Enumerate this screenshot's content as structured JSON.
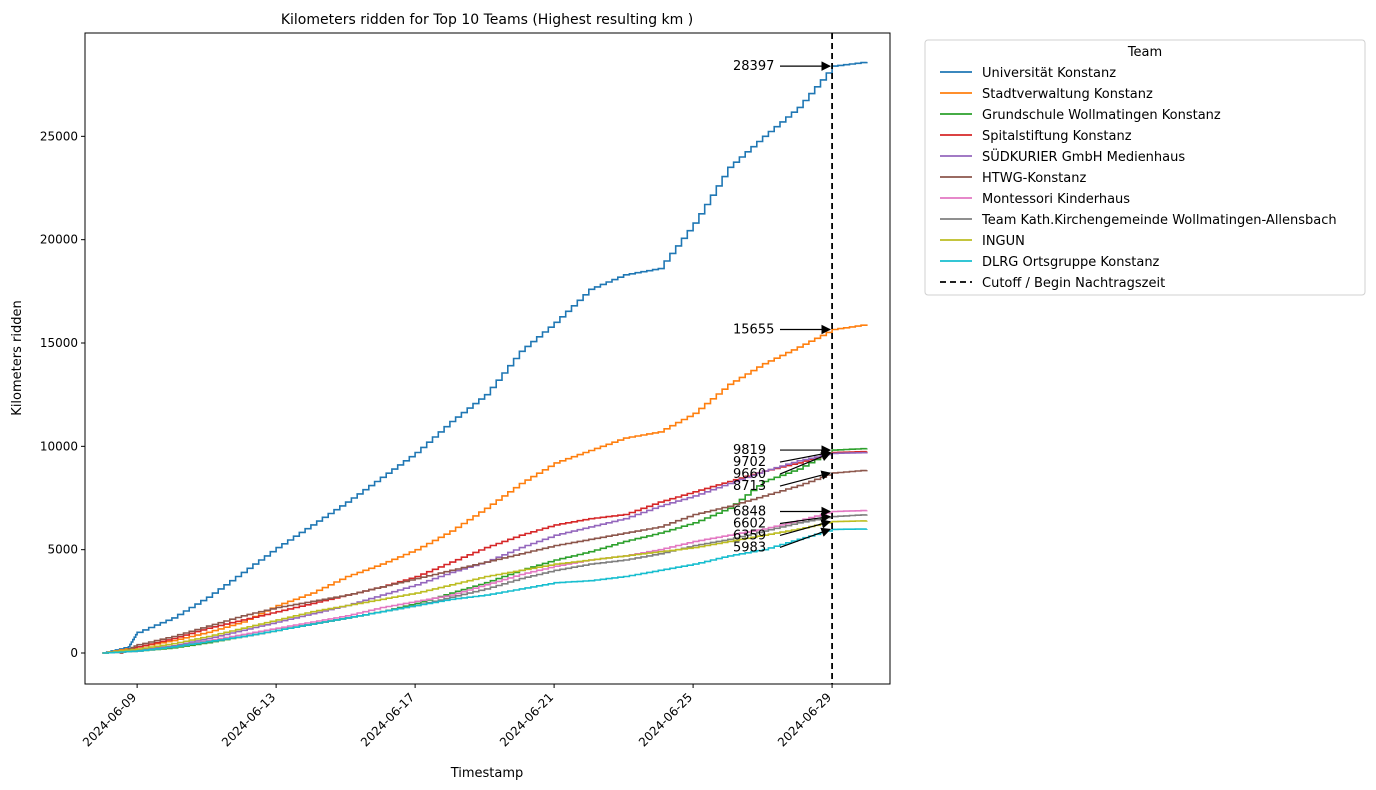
{
  "chart_data": {
    "type": "line",
    "title": "Kilometers ridden for Top 10 Teams (Highest resulting km )",
    "xlabel": "Timestamp",
    "ylabel": "Kilometers ridden",
    "x_is_date": true,
    "xlim": [
      "2024-06-07 12:00",
      "2024-06-30 16:00"
    ],
    "ylim": [
      -1500,
      30000
    ],
    "xticks": [
      "2024-06-09",
      "2024-06-13",
      "2024-06-17",
      "2024-06-21",
      "2024-06-25",
      "2024-06-29"
    ],
    "yticks": [
      0,
      5000,
      10000,
      15000,
      20000,
      25000
    ],
    "grid": false,
    "legend": {
      "title": "Team",
      "position": "outside-top-right"
    },
    "cutoff": {
      "x": "2024-06-29 00:00",
      "label": "Cutoff / Begin Nachtragszeit",
      "color": "#000000",
      "style": "dashed"
    },
    "series": [
      {
        "name": "Universität Konstanz",
        "color": "#1f77b4",
        "annotation": "28397",
        "points": [
          [
            "2024-06-08 00:00",
            0
          ],
          [
            "2024-06-08 18:00",
            300
          ],
          [
            "2024-06-09 00:00",
            1000
          ],
          [
            "2024-06-10 00:00",
            1700
          ],
          [
            "2024-06-11 00:00",
            2700
          ],
          [
            "2024-06-12 00:00",
            3900
          ],
          [
            "2024-06-13 00:00",
            5100
          ],
          [
            "2024-06-14 00:00",
            6200
          ],
          [
            "2024-06-15 00:00",
            7300
          ],
          [
            "2024-06-16 00:00",
            8500
          ],
          [
            "2024-06-17 00:00",
            9700
          ],
          [
            "2024-06-18 00:00",
            11200
          ],
          [
            "2024-06-19 00:00",
            12500
          ],
          [
            "2024-06-20 00:00",
            14600
          ],
          [
            "2024-06-21 00:00",
            16000
          ],
          [
            "2024-06-22 00:00",
            17600
          ],
          [
            "2024-06-23 00:00",
            18300
          ],
          [
            "2024-06-24 00:00",
            18600
          ],
          [
            "2024-06-25 00:00",
            20800
          ],
          [
            "2024-06-26 00:00",
            23500
          ],
          [
            "2024-06-27 00:00",
            25000
          ],
          [
            "2024-06-28 00:00",
            26400
          ],
          [
            "2024-06-29 00:00",
            28397
          ],
          [
            "2024-06-30 00:00",
            28600
          ]
        ]
      },
      {
        "name": "Stadtverwaltung Konstanz",
        "color": "#ff7f0e",
        "annotation": "15655",
        "points": [
          [
            "2024-06-08 00:00",
            0
          ],
          [
            "2024-06-09 00:00",
            300
          ],
          [
            "2024-06-10 00:00",
            600
          ],
          [
            "2024-06-11 00:00",
            1000
          ],
          [
            "2024-06-12 00:00",
            1500
          ],
          [
            "2024-06-13 00:00",
            2300
          ],
          [
            "2024-06-14 00:00",
            2900
          ],
          [
            "2024-06-15 00:00",
            3700
          ],
          [
            "2024-06-16 00:00",
            4300
          ],
          [
            "2024-06-17 00:00",
            5000
          ],
          [
            "2024-06-18 00:00",
            5900
          ],
          [
            "2024-06-19 00:00",
            7000
          ],
          [
            "2024-06-20 00:00",
            8200
          ],
          [
            "2024-06-21 00:00",
            9200
          ],
          [
            "2024-06-22 00:00",
            9800
          ],
          [
            "2024-06-23 00:00",
            10400
          ],
          [
            "2024-06-24 00:00",
            10700
          ],
          [
            "2024-06-25 00:00",
            11600
          ],
          [
            "2024-06-26 00:00",
            13000
          ],
          [
            "2024-06-27 00:00",
            14000
          ],
          [
            "2024-06-28 00:00",
            14800
          ],
          [
            "2024-06-29 00:00",
            15655
          ],
          [
            "2024-06-30 00:00",
            15900
          ]
        ]
      },
      {
        "name": "Grundschule Wollmatingen Konstanz",
        "color": "#2ca02c",
        "annotation": "9819",
        "points": [
          [
            "2024-06-08 00:00",
            0
          ],
          [
            "2024-06-09 00:00",
            100
          ],
          [
            "2024-06-10 00:00",
            250
          ],
          [
            "2024-06-11 00:00",
            500
          ],
          [
            "2024-06-12 00:00",
            800
          ],
          [
            "2024-06-13 00:00",
            1100
          ],
          [
            "2024-06-14 00:00",
            1400
          ],
          [
            "2024-06-15 00:00",
            1700
          ],
          [
            "2024-06-16 00:00",
            2000
          ],
          [
            "2024-06-17 00:00",
            2400
          ],
          [
            "2024-06-18 00:00",
            2900
          ],
          [
            "2024-06-19 00:00",
            3400
          ],
          [
            "2024-06-20 00:00",
            4000
          ],
          [
            "2024-06-21 00:00",
            4500
          ],
          [
            "2024-06-22 00:00",
            4900
          ],
          [
            "2024-06-23 00:00",
            5400
          ],
          [
            "2024-06-24 00:00",
            5800
          ],
          [
            "2024-06-25 00:00",
            6300
          ],
          [
            "2024-06-26 00:00",
            7000
          ],
          [
            "2024-06-27 00:00",
            8300
          ],
          [
            "2024-06-28 00:00",
            8900
          ],
          [
            "2024-06-29 00:00",
            9819
          ],
          [
            "2024-06-30 00:00",
            9900
          ]
        ]
      },
      {
        "name": "Spitalstiftung Konstanz",
        "color": "#d62728",
        "annotation": "9702",
        "points": [
          [
            "2024-06-08 12:00",
            0
          ],
          [
            "2024-06-09 00:00",
            300
          ],
          [
            "2024-06-10 00:00",
            700
          ],
          [
            "2024-06-11 00:00",
            1200
          ],
          [
            "2024-06-12 00:00",
            1600
          ],
          [
            "2024-06-13 00:00",
            2000
          ],
          [
            "2024-06-14 00:00",
            2400
          ],
          [
            "2024-06-15 00:00",
            2800
          ],
          [
            "2024-06-16 00:00",
            3200
          ],
          [
            "2024-06-17 00:00",
            3700
          ],
          [
            "2024-06-18 00:00",
            4400
          ],
          [
            "2024-06-19 00:00",
            5100
          ],
          [
            "2024-06-20 00:00",
            5700
          ],
          [
            "2024-06-21 00:00",
            6200
          ],
          [
            "2024-06-22 00:00",
            6500
          ],
          [
            "2024-06-23 00:00",
            6700
          ],
          [
            "2024-06-24 00:00",
            7300
          ],
          [
            "2024-06-25 00:00",
            7800
          ],
          [
            "2024-06-26 00:00",
            8300
          ],
          [
            "2024-06-27 00:00",
            8800
          ],
          [
            "2024-06-28 00:00",
            9200
          ],
          [
            "2024-06-29 00:00",
            9702
          ],
          [
            "2024-06-30 00:00",
            9750
          ]
        ]
      },
      {
        "name": "SÜDKURIER GmbH Medienhaus",
        "color": "#9467bd",
        "annotation": "9660",
        "points": [
          [
            "2024-06-08 00:00",
            0
          ],
          [
            "2024-06-09 00:00",
            150
          ],
          [
            "2024-06-10 00:00",
            350
          ],
          [
            "2024-06-11 00:00",
            700
          ],
          [
            "2024-06-12 00:00",
            1100
          ],
          [
            "2024-06-13 00:00",
            1500
          ],
          [
            "2024-06-14 00:00",
            1900
          ],
          [
            "2024-06-15 00:00",
            2300
          ],
          [
            "2024-06-16 00:00",
            2800
          ],
          [
            "2024-06-17 00:00",
            3300
          ],
          [
            "2024-06-18 00:00",
            3900
          ],
          [
            "2024-06-19 00:00",
            4400
          ],
          [
            "2024-06-20 00:00",
            5100
          ],
          [
            "2024-06-21 00:00",
            5700
          ],
          [
            "2024-06-22 00:00",
            6100
          ],
          [
            "2024-06-23 00:00",
            6500
          ],
          [
            "2024-06-24 00:00",
            7100
          ],
          [
            "2024-06-25 00:00",
            7600
          ],
          [
            "2024-06-26 00:00",
            8200
          ],
          [
            "2024-06-27 00:00",
            8800
          ],
          [
            "2024-06-28 00:00",
            9300
          ],
          [
            "2024-06-29 00:00",
            9660
          ],
          [
            "2024-06-30 00:00",
            9700
          ]
        ]
      },
      {
        "name": "HTWG-Konstanz",
        "color": "#8c564b",
        "annotation": "8713",
        "points": [
          [
            "2024-06-08 12:00",
            0
          ],
          [
            "2024-06-09 00:00",
            400
          ],
          [
            "2024-06-10 00:00",
            800
          ],
          [
            "2024-06-11 00:00",
            1300
          ],
          [
            "2024-06-12 00:00",
            1800
          ],
          [
            "2024-06-13 00:00",
            2200
          ],
          [
            "2024-06-14 00:00",
            2500
          ],
          [
            "2024-06-15 00:00",
            2800
          ],
          [
            "2024-06-16 00:00",
            3200
          ],
          [
            "2024-06-17 00:00",
            3600
          ],
          [
            "2024-06-18 00:00",
            4000
          ],
          [
            "2024-06-19 00:00",
            4400
          ],
          [
            "2024-06-20 00:00",
            4800
          ],
          [
            "2024-06-21 00:00",
            5200
          ],
          [
            "2024-06-22 00:00",
            5500
          ],
          [
            "2024-06-23 00:00",
            5800
          ],
          [
            "2024-06-24 00:00",
            6100
          ],
          [
            "2024-06-25 00:00",
            6700
          ],
          [
            "2024-06-26 00:00",
            7100
          ],
          [
            "2024-06-27 00:00",
            7600
          ],
          [
            "2024-06-28 00:00",
            8100
          ],
          [
            "2024-06-29 00:00",
            8713
          ],
          [
            "2024-06-30 00:00",
            8850
          ]
        ]
      },
      {
        "name": "Montessori Kinderhaus",
        "color": "#e377c2",
        "annotation": "6848",
        "points": [
          [
            "2024-06-08 00:00",
            0
          ],
          [
            "2024-06-09 00:00",
            100
          ],
          [
            "2024-06-10 00:00",
            300
          ],
          [
            "2024-06-11 00:00",
            600
          ],
          [
            "2024-06-12 00:00",
            900
          ],
          [
            "2024-06-13 00:00",
            1200
          ],
          [
            "2024-06-14 00:00",
            1500
          ],
          [
            "2024-06-15 00:00",
            1800
          ],
          [
            "2024-06-16 00:00",
            2200
          ],
          [
            "2024-06-17 00:00",
            2500
          ],
          [
            "2024-06-18 00:00",
            2800
          ],
          [
            "2024-06-19 00:00",
            3300
          ],
          [
            "2024-06-20 00:00",
            3800
          ],
          [
            "2024-06-21 00:00",
            4200
          ],
          [
            "2024-06-22 00:00",
            4500
          ],
          [
            "2024-06-23 00:00",
            4700
          ],
          [
            "2024-06-24 00:00",
            5000
          ],
          [
            "2024-06-25 00:00",
            5400
          ],
          [
            "2024-06-26 00:00",
            5700
          ],
          [
            "2024-06-27 00:00",
            6000
          ],
          [
            "2024-06-28 00:00",
            6400
          ],
          [
            "2024-06-29 00:00",
            6848
          ],
          [
            "2024-06-30 00:00",
            6900
          ]
        ]
      },
      {
        "name": "Team Kath.Kirchengemeinde Wollmatingen-Allensbach",
        "color": "#7f7f7f",
        "annotation": "6602",
        "points": [
          [
            "2024-06-08 00:00",
            0
          ],
          [
            "2024-06-09 00:00",
            100
          ],
          [
            "2024-06-10 00:00",
            300
          ],
          [
            "2024-06-11 00:00",
            550
          ],
          [
            "2024-06-12 00:00",
            800
          ],
          [
            "2024-06-13 00:00",
            1100
          ],
          [
            "2024-06-14 00:00",
            1400
          ],
          [
            "2024-06-15 00:00",
            1700
          ],
          [
            "2024-06-16 00:00",
            2000
          ],
          [
            "2024-06-17 00:00",
            2300
          ],
          [
            "2024-06-18 00:00",
            2700
          ],
          [
            "2024-06-19 00:00",
            3100
          ],
          [
            "2024-06-20 00:00",
            3600
          ],
          [
            "2024-06-21 00:00",
            4000
          ],
          [
            "2024-06-22 00:00",
            4300
          ],
          [
            "2024-06-23 00:00",
            4500
          ],
          [
            "2024-06-24 00:00",
            4800
          ],
          [
            "2024-06-25 00:00",
            5200
          ],
          [
            "2024-06-26 00:00",
            5500
          ],
          [
            "2024-06-27 00:00",
            5900
          ],
          [
            "2024-06-28 00:00",
            6300
          ],
          [
            "2024-06-29 00:00",
            6602
          ],
          [
            "2024-06-30 00:00",
            6700
          ]
        ]
      },
      {
        "name": "INGUN",
        "color": "#bcbd22",
        "annotation": "6359",
        "points": [
          [
            "2024-06-08 00:00",
            0
          ],
          [
            "2024-06-09 00:00",
            200
          ],
          [
            "2024-06-10 00:00",
            450
          ],
          [
            "2024-06-11 00:00",
            800
          ],
          [
            "2024-06-12 00:00",
            1200
          ],
          [
            "2024-06-13 00:00",
            1600
          ],
          [
            "2024-06-14 00:00",
            2000
          ],
          [
            "2024-06-15 00:00",
            2300
          ],
          [
            "2024-06-16 00:00",
            2600
          ],
          [
            "2024-06-17 00:00",
            2900
          ],
          [
            "2024-06-18 00:00",
            3300
          ],
          [
            "2024-06-19 00:00",
            3700
          ],
          [
            "2024-06-20 00:00",
            4000
          ],
          [
            "2024-06-21 00:00",
            4300
          ],
          [
            "2024-06-22 00:00",
            4500
          ],
          [
            "2024-06-23 00:00",
            4700
          ],
          [
            "2024-06-24 00:00",
            4900
          ],
          [
            "2024-06-25 00:00",
            5100
          ],
          [
            "2024-06-26 00:00",
            5400
          ],
          [
            "2024-06-27 00:00",
            5700
          ],
          [
            "2024-06-28 00:00",
            6000
          ],
          [
            "2024-06-29 00:00",
            6359
          ],
          [
            "2024-06-30 00:00",
            6400
          ]
        ]
      },
      {
        "name": "DLRG Ortsgruppe Konstanz",
        "color": "#17becf",
        "annotation": "5983",
        "points": [
          [
            "2024-06-08 00:00",
            0
          ],
          [
            "2024-06-09 00:00",
            100
          ],
          [
            "2024-06-10 00:00",
            300
          ],
          [
            "2024-06-11 00:00",
            550
          ],
          [
            "2024-06-12 00:00",
            800
          ],
          [
            "2024-06-13 00:00",
            1100
          ],
          [
            "2024-06-14 00:00",
            1400
          ],
          [
            "2024-06-15 00:00",
            1700
          ],
          [
            "2024-06-16 00:00",
            2000
          ],
          [
            "2024-06-17 00:00",
            2300
          ],
          [
            "2024-06-18 00:00",
            2600
          ],
          [
            "2024-06-19 00:00",
            2800
          ],
          [
            "2024-06-20 00:00",
            3100
          ],
          [
            "2024-06-21 00:00",
            3400
          ],
          [
            "2024-06-22 00:00",
            3500
          ],
          [
            "2024-06-23 00:00",
            3700
          ],
          [
            "2024-06-24 00:00",
            4000
          ],
          [
            "2024-06-25 00:00",
            4300
          ],
          [
            "2024-06-26 00:00",
            4700
          ],
          [
            "2024-06-27 00:00",
            5000
          ],
          [
            "2024-06-28 00:00",
            5500
          ],
          [
            "2024-06-29 00:00",
            5983
          ],
          [
            "2024-06-30 00:00",
            6000
          ]
        ]
      }
    ]
  }
}
